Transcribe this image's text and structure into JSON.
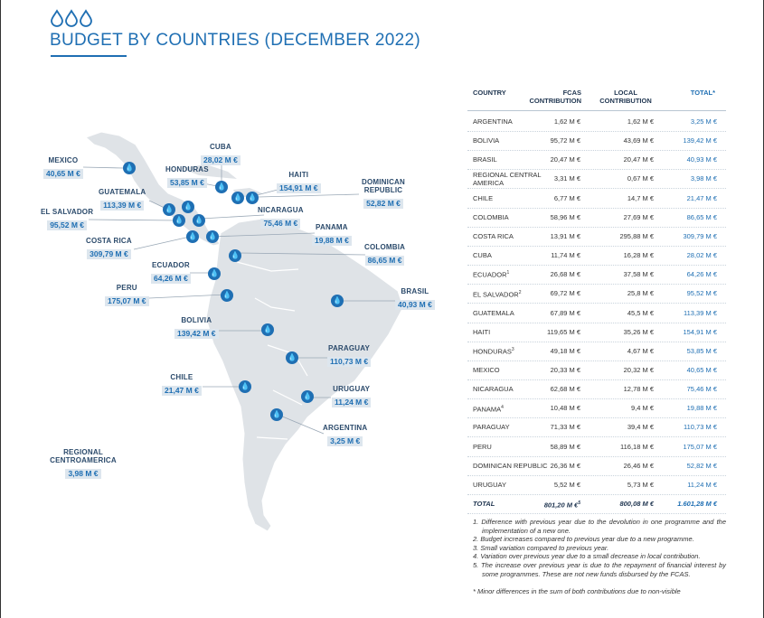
{
  "header": {
    "title": "BUDGET BY COUNTRIES (DECEMBER 2022)",
    "icon": "water-drops-icon"
  },
  "colors": {
    "accent": "#1f6fb3",
    "land": "#dfe3e7",
    "label_bg": "#dde6ee"
  },
  "map": {
    "labels": [
      {
        "name": "MEXICO",
        "value": "40,65 M €"
      },
      {
        "name": "CUBA",
        "value": "28,02 M €"
      },
      {
        "name": "HONDURAS",
        "value": "53,85 M €"
      },
      {
        "name": "HAITI",
        "value": "154,91 M €"
      },
      {
        "name": "DOMINICAN REPUBLIC",
        "value": "52,82 M €"
      },
      {
        "name": "GUATEMALA",
        "value": "113,39 M €"
      },
      {
        "name": "EL SALVADOR",
        "value": "95,52 M €"
      },
      {
        "name": "NICARAGUA",
        "value": "75,46 M €"
      },
      {
        "name": "PANAMA",
        "value": "19,88 M €"
      },
      {
        "name": "COSTA RICA",
        "value": "309,79 M €"
      },
      {
        "name": "COLOMBIA",
        "value": "86,65 M €"
      },
      {
        "name": "ECUADOR",
        "value": "64,26 M €"
      },
      {
        "name": "PERU",
        "value": "175,07 M €"
      },
      {
        "name": "BRASIL",
        "value": "40,93 M €"
      },
      {
        "name": "BOLIVIA",
        "value": "139,42 M €"
      },
      {
        "name": "PARAGUAY",
        "value": "110,73 M €"
      },
      {
        "name": "CHILE",
        "value": "21,47 M €"
      },
      {
        "name": "URUGUAY",
        "value": "11,24 M €"
      },
      {
        "name": "ARGENTINA",
        "value": "3,25 M €"
      },
      {
        "name": "REGIONAL CENTROAMERICA",
        "value": "3,98 M €"
      }
    ]
  },
  "table": {
    "headers": {
      "country": "COUNTRY",
      "fcas": "FCAS CONTRIBUTION",
      "local": "LOCAL CONTRIBUTION",
      "total": "TOTAL*"
    },
    "rows": [
      {
        "country": "ARGENTINA",
        "fcas": "1,62 M €",
        "local": "1,62 M €",
        "total": "3,25 M €"
      },
      {
        "country": "BOLIVIA",
        "fcas": "95,72 M €",
        "local": "43,69 M €",
        "total": "139,42 M €"
      },
      {
        "country": "BRASIL",
        "fcas": "20,47 M €",
        "local": "20,47 M €",
        "total": "40,93 M €"
      },
      {
        "country": "REGIONAL CENTRAL AMERICA",
        "fcas": "3,31 M €",
        "local": "0,67 M €",
        "total": "3,98 M €"
      },
      {
        "country": "CHILE",
        "fcas": "6,77 M €",
        "local": "14,7 M €",
        "total": "21,47 M €"
      },
      {
        "country": "COLOMBIA",
        "fcas": "58,96 M €",
        "local": "27,69 M €",
        "total": "86,65 M €"
      },
      {
        "country": "COSTA RICA",
        "fcas": "13,91 M €",
        "local": "295,88 M €",
        "total": "309,79 M €"
      },
      {
        "country": "CUBA",
        "fcas": "11,74 M €",
        "local": "16,28 M €",
        "total": "28,02 M €"
      },
      {
        "country": "ECUADOR",
        "sup": "1",
        "fcas": "26,68 M €",
        "local": "37,58 M €",
        "total": "64,26 M €"
      },
      {
        "country": "EL SALVADOR",
        "sup": "2",
        "fcas": "69,72 M €",
        "local": "25,8 M €",
        "total": "95,52 M €"
      },
      {
        "country": "GUATEMALA",
        "fcas": "67,89 M €",
        "local": "45,5 M €",
        "total": "113,39 M €"
      },
      {
        "country": "HAITI",
        "fcas": "119,65 M €",
        "local": "35,26 M €",
        "total": "154,91 M €"
      },
      {
        "country": "HONDURAS",
        "sup": "3",
        "fcas": "49,18 M €",
        "local": "4,67 M €",
        "total": "53,85 M €"
      },
      {
        "country": "MEXICO",
        "fcas": "20,33 M €",
        "local": "20,32 M €",
        "total": "40,65 M €"
      },
      {
        "country": "NICARAGUA",
        "fcas": "62,68 M €",
        "local": "12,78 M €",
        "total": "75,46 M €"
      },
      {
        "country": "PANAMA",
        "sup": "4",
        "fcas": "10,48 M €",
        "local": "9,4 M €",
        "total": "19,88 M €"
      },
      {
        "country": "PARAGUAY",
        "fcas": "71,33 M €",
        "local": "39,4 M €",
        "total": "110,73 M €"
      },
      {
        "country": "PERU",
        "fcas": "58,89 M €",
        "local": "116,18 M €",
        "total": "175,07 M €"
      },
      {
        "country": "DOMINICAN REPUBLIC",
        "fcas": "26,36 M €",
        "local": "26,46 M €",
        "total": "52,82 M €"
      },
      {
        "country": "URUGUAY",
        "fcas": "5,52 M €",
        "local": "5,73 M €",
        "total": "11,24 M €"
      }
    ],
    "total_row": {
      "country": "TOTAL",
      "fcas": "801,20 M €",
      "fcas_sup": "5",
      "local": "800,08 M €",
      "total": "1.601,28 M €"
    }
  },
  "notes": [
    "1. Difference with previous year due to the devolution in one programme and the implementation of a new one.",
    "2. Budget increases compared to previous year due to a new programme.",
    "3. Small variation compared to previous year.",
    "4. Variation over previous year due to a small decrease in local contribution.",
    "5. The increase over previous year is due to the repayment of financial interest by some programmes. These are not new funds disbursed by the FCAS.",
    "* Minor differences in the sum of both contributions due to non-visible"
  ]
}
